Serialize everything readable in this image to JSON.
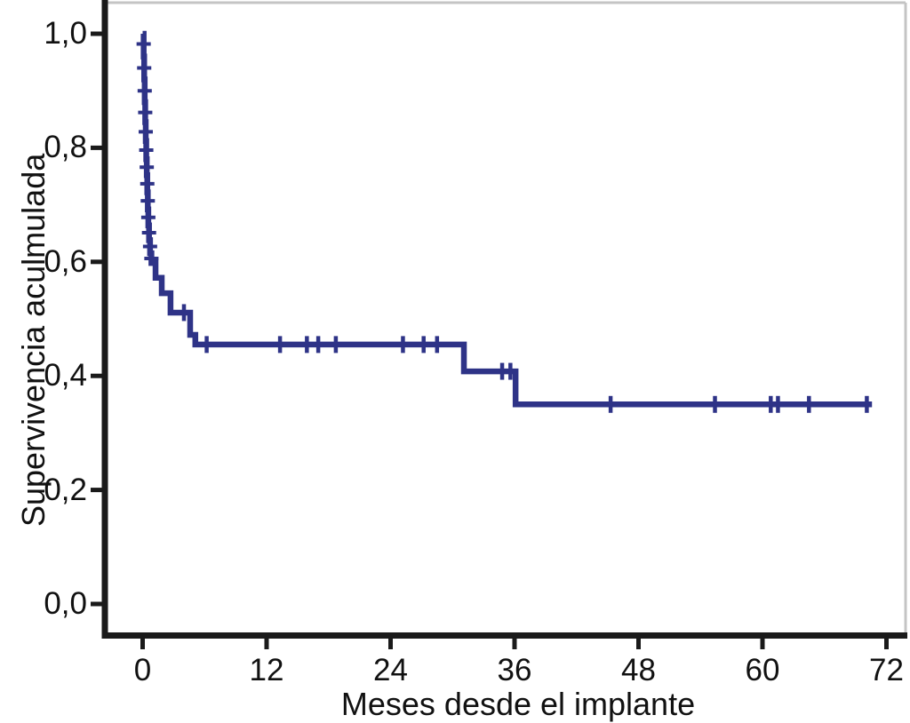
{
  "chart_data": {
    "type": "line",
    "subtype": "kaplan-meier-step",
    "title": "",
    "xlabel": "Meses desde el implante",
    "ylabel": "Supervivencia aculmulada",
    "xlim": [
      0,
      74
    ],
    "ylim": [
      0.0,
      1.0
    ],
    "grid": false,
    "legend": false,
    "x_ticks": {
      "values": [
        0,
        12,
        24,
        36,
        48,
        60,
        72
      ],
      "labels": [
        "0",
        "12",
        "24",
        "36",
        "48",
        "60",
        "72"
      ]
    },
    "y_ticks": {
      "values": [
        0.0,
        0.2,
        0.4,
        0.6,
        0.8,
        1.0
      ],
      "labels": [
        "0,0",
        "0,2",
        "0,4",
        "0,6",
        "0,8",
        "1,0"
      ]
    },
    "colors": {
      "line": "#2e3387",
      "axis": "#1a1a1a",
      "frame": "#c4c4c4",
      "text": "#111111"
    },
    "series": [
      {
        "name": "Supervivencia acumulada",
        "steps": [
          [
            0.0,
            1.0
          ],
          [
            0.1,
            0.96
          ],
          [
            0.15,
            0.92
          ],
          [
            0.2,
            0.88
          ],
          [
            0.25,
            0.845
          ],
          [
            0.3,
            0.812
          ],
          [
            0.35,
            0.78
          ],
          [
            0.4,
            0.752
          ],
          [
            0.45,
            0.722
          ],
          [
            0.5,
            0.692
          ],
          [
            0.55,
            0.664
          ],
          [
            0.62,
            0.638
          ],
          [
            0.72,
            0.615
          ],
          [
            0.85,
            0.598
          ],
          [
            1.25,
            0.572
          ],
          [
            1.85,
            0.545
          ],
          [
            2.7,
            0.511
          ],
          [
            4.6,
            0.472
          ],
          [
            5.1,
            0.455
          ],
          [
            31.1,
            0.408
          ],
          [
            36.1,
            0.35
          ]
        ],
        "end_month": 70.6,
        "censors_vertical_tick": [
          [
            4.0,
            0.511
          ],
          [
            6.2,
            0.455
          ],
          [
            13.3,
            0.455
          ],
          [
            15.9,
            0.455
          ],
          [
            17.0,
            0.455
          ],
          [
            18.7,
            0.455
          ],
          [
            25.2,
            0.455
          ],
          [
            27.2,
            0.455
          ],
          [
            28.5,
            0.455
          ],
          [
            34.8,
            0.408
          ],
          [
            35.6,
            0.408
          ],
          [
            45.3,
            0.35
          ],
          [
            55.4,
            0.35
          ],
          [
            60.8,
            0.35
          ],
          [
            61.5,
            0.35
          ],
          [
            64.5,
            0.35
          ],
          [
            70.1,
            0.35
          ]
        ],
        "censors_horizontal_tick": [
          [
            0.1,
            0.982
          ],
          [
            0.15,
            0.94
          ],
          [
            0.2,
            0.9
          ],
          [
            0.25,
            0.862
          ],
          [
            0.3,
            0.828
          ],
          [
            0.35,
            0.796
          ],
          [
            0.4,
            0.766
          ],
          [
            0.45,
            0.737
          ],
          [
            0.5,
            0.707
          ],
          [
            0.55,
            0.678
          ],
          [
            0.62,
            0.651
          ],
          [
            0.72,
            0.627
          ],
          [
            0.85,
            0.606
          ]
        ]
      }
    ]
  }
}
